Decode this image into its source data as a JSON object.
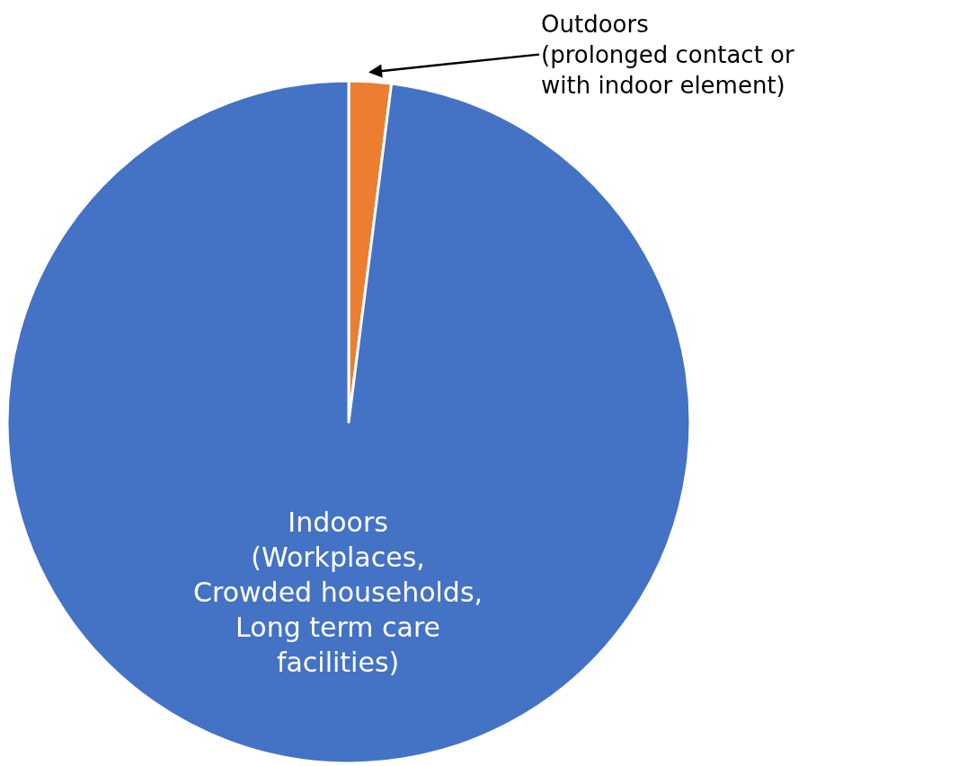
{
  "chart_data": {
    "type": "pie",
    "categories": [
      "Outdoors\n(prolonged contact or\nwith indoor element)",
      "Indoors\n(Workplaces,\nCrowded households,\nLong term care\nfacilities)"
    ],
    "values": [
      2,
      98
    ],
    "colors": [
      "#ed7d31",
      "#4472c4"
    ],
    "legend": false
  }
}
